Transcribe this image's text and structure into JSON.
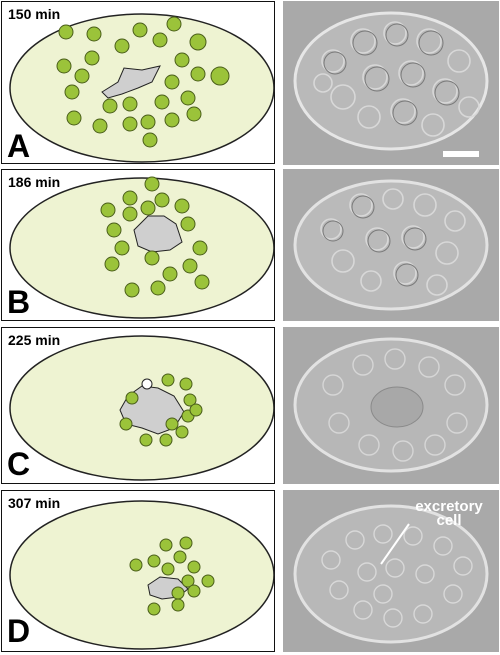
{
  "panels": [
    {
      "letter": "A",
      "time": "150 min"
    },
    {
      "letter": "B",
      "time": "186 min"
    },
    {
      "letter": "C",
      "time": "225 min"
    },
    {
      "letter": "D",
      "time": "307 min"
    }
  ],
  "annotation": {
    "line1": "excretory",
    "line2": "cell"
  },
  "colors": {
    "embryo_fill": "#eef3d2",
    "cell_fill": "#9bc33a",
    "excretory_fill": "#cfcfcf",
    "outline": "#222222"
  }
}
